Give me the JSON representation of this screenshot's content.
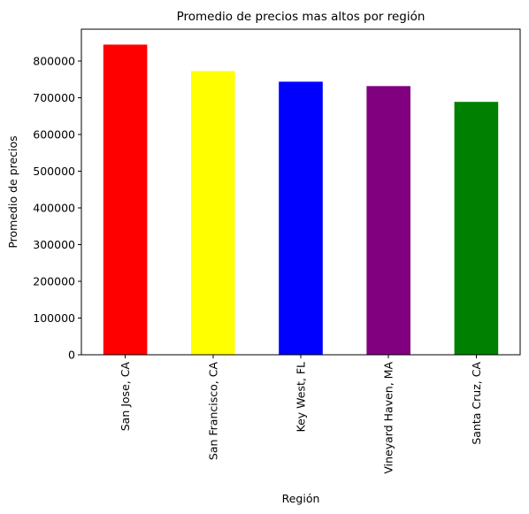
{
  "chart_data": {
    "type": "bar",
    "title": "Promedio de precios mas altos por región",
    "xlabel": "Región",
    "ylabel": "Promedio de precios",
    "categories": [
      "San Jose, CA",
      "San Francisco, CA",
      "Key West, FL",
      "Vineyard Haven, MA",
      "Santa Cruz, CA"
    ],
    "values": [
      845000,
      773000,
      744000,
      732000,
      689000
    ],
    "colors": [
      "#ff0000",
      "#ffff00",
      "#0000ff",
      "#800080",
      "#008000"
    ],
    "ylim": [
      0,
      887000
    ],
    "yticks": [
      0,
      100000,
      200000,
      300000,
      400000,
      500000,
      600000,
      700000,
      800000
    ],
    "ytick_labels": [
      "0",
      "100000",
      "200000",
      "300000",
      "400000",
      "500000",
      "600000",
      "700000",
      "800000"
    ],
    "grid": false,
    "legend": "none"
  }
}
